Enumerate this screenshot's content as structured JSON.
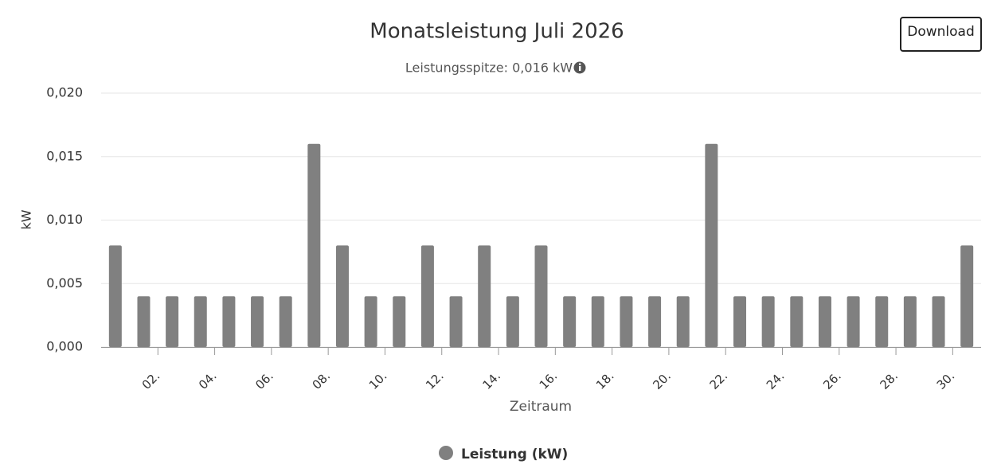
{
  "download_button": "Download",
  "chart_data": {
    "type": "bar",
    "title": "Monatsleistung Juli 2026",
    "subtitle": "Leistungsspitze: 0,016 kW",
    "x_label": "Zeitraum",
    "y_label": "kW",
    "categories": [
      null,
      "02.",
      null,
      "04.",
      null,
      "06.",
      null,
      "08.",
      null,
      "10.",
      null,
      "12.",
      null,
      "14.",
      null,
      "16.",
      null,
      "18.",
      null,
      "20.",
      null,
      "22.",
      null,
      "24.",
      null,
      "26.",
      null,
      "28.",
      null,
      "30.",
      null
    ],
    "series": [
      {
        "name": "Leistung (kW)",
        "color": "#808080",
        "values": [
          0.008,
          0.004,
          0.004,
          0.004,
          0.004,
          0.004,
          0.004,
          0.016,
          0.008,
          0.004,
          0.004,
          0.008,
          0.004,
          0.008,
          0.004,
          0.008,
          0.004,
          0.004,
          0.004,
          0.004,
          0.004,
          0.016,
          0.004,
          0.004,
          0.004,
          0.004,
          0.004,
          0.004,
          0.004,
          0.004,
          0.008
        ]
      }
    ],
    "ylim": [
      0,
      0.02
    ],
    "yticks": [
      {
        "value": 0,
        "label": "0,000"
      },
      {
        "value": 0.005,
        "label": "0,005"
      },
      {
        "value": 0.01,
        "label": "0,010"
      },
      {
        "value": 0.015,
        "label": "0,015"
      },
      {
        "value": 0.02,
        "label": "0,020"
      }
    ],
    "grid": true,
    "legend": "bottom"
  }
}
